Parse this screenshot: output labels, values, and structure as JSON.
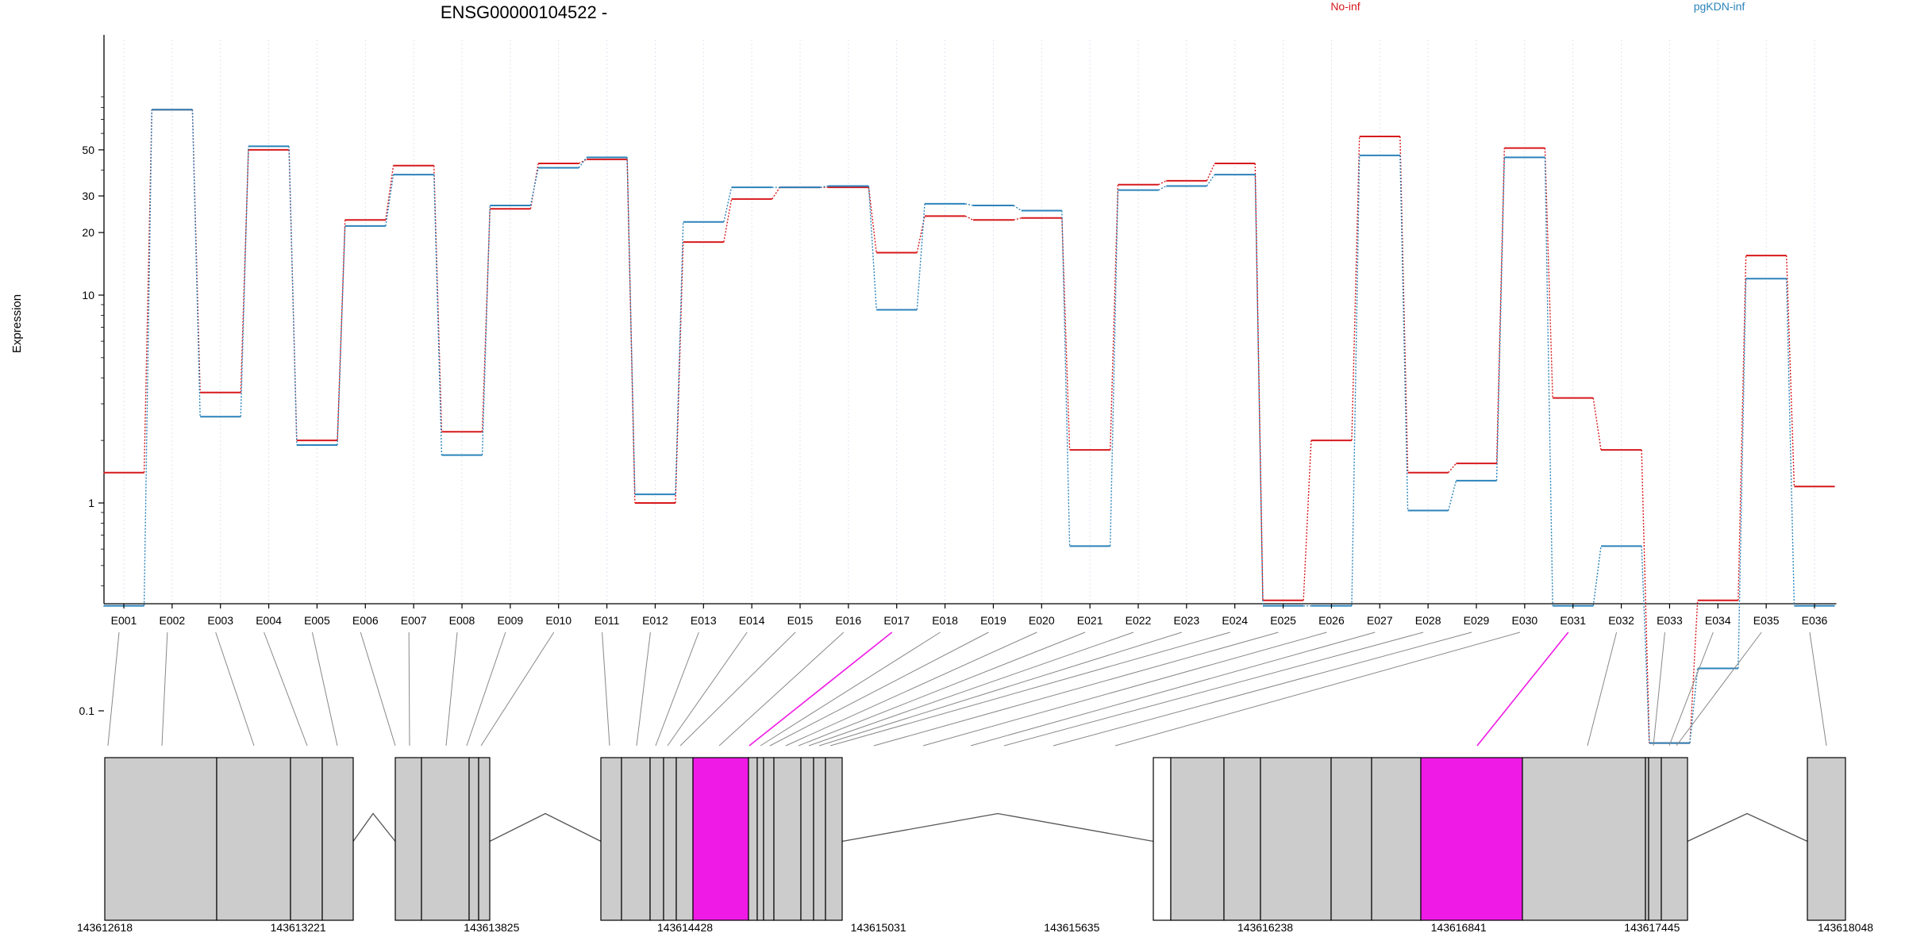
{
  "chart_data": {
    "type": "line",
    "title": "ENSG00000104522 -",
    "ylabel": "Expression",
    "xlabel": "",
    "y_scale": "log",
    "grid": "vertical dotted lines at exon centers",
    "legend": [
      {
        "name": "No-inf",
        "color": "#d7191c",
        "placement": "top-center"
      },
      {
        "name": "pgKDN-inf",
        "color": "#2b83ba",
        "placement": "top-right"
      }
    ],
    "yticks": [
      0.1,
      1,
      10,
      20,
      30,
      50
    ],
    "ytick_labels": [
      "0.1",
      "1",
      "10",
      "20",
      "30",
      "50"
    ],
    "categories": [
      "E001",
      "E002",
      "E003",
      "E004",
      "E005",
      "E006",
      "E007",
      "E008",
      "E009",
      "E010",
      "E011",
      "E012",
      "E013",
      "E014",
      "E015",
      "E016",
      "E017",
      "E018",
      "E019",
      "E020",
      "E021",
      "E022",
      "E023",
      "E024",
      "E025",
      "E026",
      "E027",
      "E028",
      "E029",
      "E030",
      "E031",
      "E032",
      "E033",
      "E034",
      "E035",
      "E036"
    ],
    "series": [
      {
        "name": "No-inf",
        "color": "#d7191c",
        "values": [
          1.4,
          78,
          3.4,
          50,
          2.0,
          23,
          42,
          2.2,
          26,
          43,
          45,
          1.0,
          18,
          29,
          33,
          33,
          16,
          24,
          23,
          23.5,
          1.8,
          34,
          35.5,
          43,
          0.34,
          2.0,
          58,
          1.4,
          1.55,
          51,
          3.2,
          1.8,
          0.07,
          0.34,
          15.5,
          1.2
        ]
      },
      {
        "name": "pgKDN-inf",
        "color": "#2b83ba",
        "values": [
          0.32,
          78,
          2.6,
          52,
          1.9,
          21.5,
          38,
          1.7,
          27,
          41,
          46,
          1.1,
          22.5,
          33,
          33,
          33.5,
          8.5,
          27.5,
          27,
          25.5,
          0.62,
          32,
          33.5,
          38,
          0.32,
          0.32,
          47,
          0.92,
          1.28,
          46,
          0.32,
          0.62,
          0.07,
          0.16,
          12,
          0.32
        ]
      }
    ],
    "gene_model": {
      "coordinate_ticks": [
        "143612618",
        "143613221",
        "143613825",
        "143614428",
        "143615031",
        "143615635",
        "143616238",
        "143616841",
        "143617445",
        "143618048"
      ],
      "highlight_color": "#f01ae6",
      "box_color": "#cccccc",
      "highlighted_exons": [
        "E017",
        "E031"
      ]
    }
  }
}
